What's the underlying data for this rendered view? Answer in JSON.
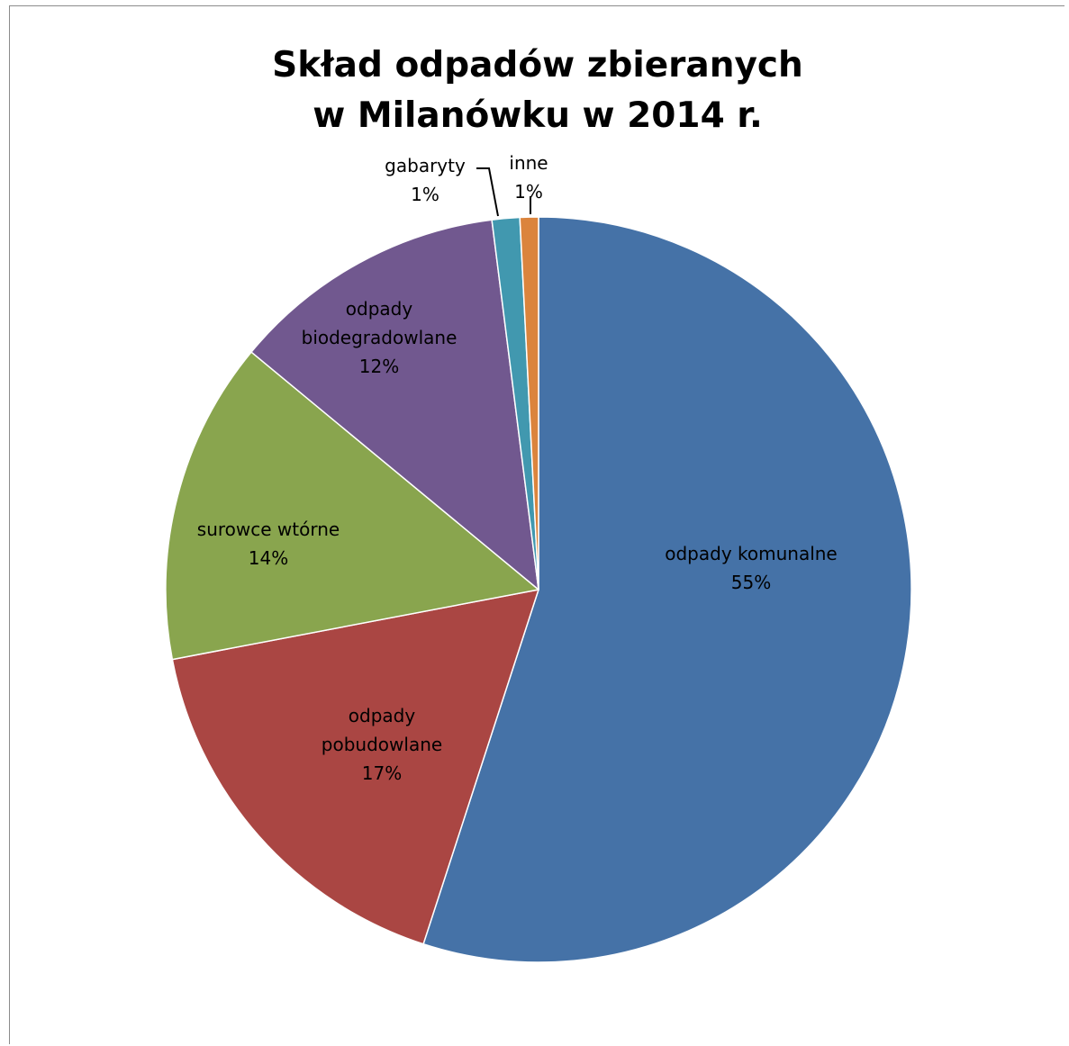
{
  "chart_data": {
    "type": "pie",
    "title_lines": [
      "Skład odpadów zbieranych",
      "w Milanówku w 2014 r."
    ],
    "slices": [
      {
        "name": "odpady komunalne",
        "label_lines": [
          "odpady komunalne"
        ],
        "percent_label": "55%",
        "value": 55,
        "color": "#4572A7"
      },
      {
        "name": "odpady pobudowlane",
        "label_lines": [
          "odpady",
          "pobudowlane"
        ],
        "percent_label": "17%",
        "value": 17,
        "color": "#AA4643"
      },
      {
        "name": "surowce wtórne",
        "label_lines": [
          "surowce wtórne"
        ],
        "percent_label": "14%",
        "value": 14,
        "color": "#89A54E"
      },
      {
        "name": "odpady biodegradowlane",
        "label_lines": [
          "odpady",
          "biodegradowlane"
        ],
        "percent_label": "12%",
        "value": 12,
        "color": "#71588F"
      },
      {
        "name": "gabaryty",
        "label_lines": [
          "gabaryty"
        ],
        "percent_label": "1%",
        "value": 1.2,
        "color": "#4198AF"
      },
      {
        "name": "inne",
        "label_lines": [
          "inne"
        ],
        "percent_label": "1%",
        "value": 0.8,
        "color": "#DB843D"
      }
    ],
    "start_angle_deg": 0,
    "direction": "clockwise",
    "legend": "none"
  }
}
